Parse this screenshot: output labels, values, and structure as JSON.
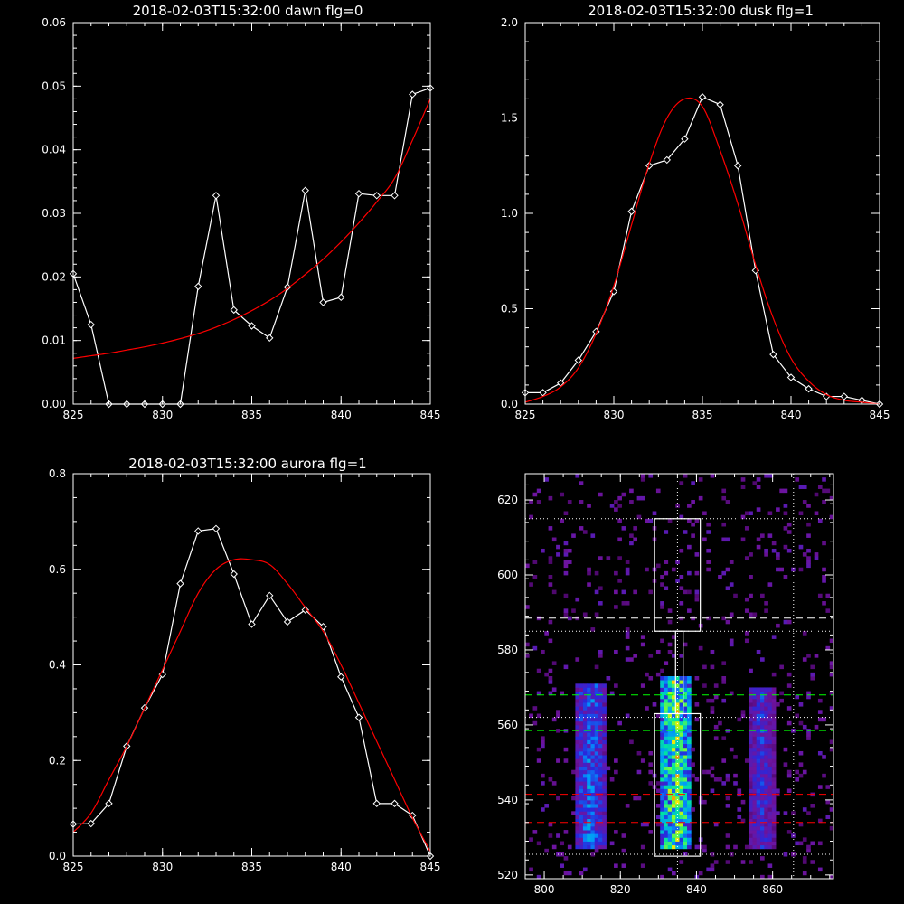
{
  "chart_data": [
    {
      "id": "dawn",
      "type": "line",
      "title": "2018-02-03T15:32:00 dawn flg=0",
      "xlabel": "",
      "ylabel": "",
      "xlim": [
        825,
        845
      ],
      "ylim": [
        0,
        0.06
      ],
      "xticks": [
        "825",
        "830",
        "835",
        "840",
        "845"
      ],
      "yticks": [
        "0.00",
        "0.01",
        "0.02",
        "0.03",
        "0.04",
        "0.05",
        "0.06"
      ],
      "series": [
        {
          "color": "#ffffff",
          "marker": "diamond",
          "x": [
            825,
            826,
            827,
            828,
            829,
            830,
            831,
            832,
            833,
            834,
            835,
            836,
            837,
            838,
            839,
            840,
            841,
            842,
            843,
            844,
            845
          ],
          "y": [
            0.0205,
            0.0125,
            0.0,
            0.0,
            0.0,
            0.0,
            0.0,
            0.0185,
            0.0328,
            0.0148,
            0.0123,
            0.0104,
            0.0184,
            0.0336,
            0.016,
            0.0168,
            0.0331,
            0.0328,
            0.0328,
            0.0487,
            0.0497
          ]
        },
        {
          "color": "#ff0000",
          "marker": "none",
          "x": [
            825,
            826,
            827,
            828,
            829,
            830,
            831,
            832,
            833,
            834,
            835,
            836,
            837,
            838,
            839,
            840,
            841,
            842,
            843,
            844,
            845
          ],
          "y": [
            0.0072,
            0.0076,
            0.008,
            0.0085,
            0.009,
            0.0096,
            0.0103,
            0.0111,
            0.0121,
            0.0133,
            0.0147,
            0.0163,
            0.0182,
            0.0204,
            0.0228,
            0.0255,
            0.0285,
            0.0318,
            0.0355,
            0.0415,
            0.048
          ]
        }
      ]
    },
    {
      "id": "dusk",
      "type": "line",
      "title": "2018-02-03T15:32:00 dusk flg=1",
      "xlabel": "",
      "ylabel": "",
      "xlim": [
        825,
        845
      ],
      "ylim": [
        0,
        2.0
      ],
      "xticks": [
        "825",
        "830",
        "835",
        "840",
        "845"
      ],
      "yticks": [
        "0.0",
        "0.5",
        "1.0",
        "1.5",
        "2.0"
      ],
      "series": [
        {
          "color": "#ffffff",
          "marker": "diamond",
          "x": [
            825,
            826,
            827,
            828,
            829,
            830,
            831,
            832,
            833,
            834,
            835,
            836,
            837,
            838,
            839,
            840,
            841,
            842,
            843,
            844,
            845
          ],
          "y": [
            0.06,
            0.06,
            0.11,
            0.23,
            0.38,
            0.59,
            1.01,
            1.25,
            1.28,
            1.39,
            1.61,
            1.57,
            1.25,
            0.7,
            0.26,
            0.14,
            0.08,
            0.04,
            0.04,
            0.02,
            0.0
          ]
        },
        {
          "color": "#ff0000",
          "marker": "none",
          "x": [
            825,
            826,
            827,
            828,
            829,
            830,
            831,
            832,
            833,
            834,
            835,
            836,
            837,
            838,
            839,
            840,
            841,
            842,
            843,
            844,
            845
          ],
          "y": [
            0.01,
            0.04,
            0.09,
            0.19,
            0.37,
            0.62,
            0.94,
            1.26,
            1.5,
            1.6,
            1.56,
            1.33,
            1.05,
            0.73,
            0.45,
            0.24,
            0.12,
            0.05,
            0.02,
            0.01,
            0.0
          ]
        }
      ]
    },
    {
      "id": "aurora",
      "type": "line",
      "title": "2018-02-03T15:32:00 aurora flg=1",
      "xlabel": "",
      "ylabel": "",
      "xlim": [
        825,
        845
      ],
      "ylim": [
        0,
        0.8
      ],
      "xticks": [
        "825",
        "830",
        "835",
        "840",
        "845"
      ],
      "yticks": [
        "0.0",
        "0.2",
        "0.4",
        "0.6",
        "0.8"
      ],
      "series": [
        {
          "color": "#ffffff",
          "marker": "diamond",
          "x": [
            825,
            826,
            827,
            828,
            829,
            830,
            831,
            832,
            833,
            834,
            835,
            836,
            837,
            838,
            839,
            840,
            841,
            842,
            843,
            844,
            845
          ],
          "y": [
            0.067,
            0.068,
            0.11,
            0.23,
            0.31,
            0.38,
            0.57,
            0.68,
            0.685,
            0.59,
            0.485,
            0.545,
            0.49,
            0.515,
            0.48,
            0.375,
            0.29,
            0.11,
            0.11,
            0.085,
            0.0
          ]
        },
        {
          "color": "#ff0000",
          "marker": "none",
          "x": [
            825,
            826,
            827,
            828,
            829,
            830,
            831,
            832,
            833,
            834,
            835,
            836,
            837,
            838,
            839,
            840,
            841,
            842,
            843,
            844,
            845
          ],
          "y": [
            0.05,
            0.09,
            0.16,
            0.23,
            0.31,
            0.39,
            0.47,
            0.55,
            0.6,
            0.62,
            0.62,
            0.61,
            0.57,
            0.52,
            0.47,
            0.4,
            0.32,
            0.24,
            0.16,
            0.08,
            0.01
          ]
        }
      ]
    },
    {
      "id": "spectrogram",
      "type": "heatmap",
      "title": "",
      "xlabel": "",
      "ylabel": "",
      "xlim": [
        795,
        876
      ],
      "ylim": [
        519,
        627
      ],
      "xticks": [
        "800",
        "820",
        "840",
        "860"
      ],
      "yticks": [
        "520",
        "540",
        "560",
        "580",
        "600",
        "620"
      ],
      "columns": [
        {
          "center_x": 812,
          "width": 6,
          "y_from": 527,
          "y_to": 571,
          "peak": 0.55
        },
        {
          "center_x": 834.5,
          "width": 7,
          "y_from": 527,
          "y_to": 573,
          "peak": 1.0
        },
        {
          "center_x": 857,
          "width": 5,
          "y_from": 527,
          "y_to": 570,
          "peak": 0.4
        }
      ],
      "boxes": [
        {
          "x": [
            829,
            841
          ],
          "y": [
            585,
            615
          ],
          "color": "#ffffff"
        },
        {
          "x": [
            829,
            841
          ],
          "y": [
            525,
            563
          ],
          "color": "#ffffff"
        },
        {
          "x": [
            834.5,
            836.5
          ],
          "y": [
            563,
            585
          ],
          "color": "#ffffff"
        }
      ],
      "hlines": [
        {
          "y": 615,
          "style": "dotted",
          "color": "#ffffff"
        },
        {
          "y": 588.5,
          "style": "dashed",
          "color": "#ffffff"
        },
        {
          "y": 585,
          "style": "dotted",
          "color": "#ffffff"
        },
        {
          "y": 568,
          "style": "dashed",
          "color": "#00ff00"
        },
        {
          "y": 562,
          "style": "dotted",
          "color": "#ffffff"
        },
        {
          "y": 558.5,
          "style": "dashed",
          "color": "#00ff00"
        },
        {
          "y": 541.5,
          "style": "dashed",
          "color": "#ff0000"
        },
        {
          "y": 534,
          "style": "dashed",
          "color": "#ff0000"
        },
        {
          "y": 525.5,
          "style": "dotted",
          "color": "#ffffff"
        }
      ],
      "vlines": [
        {
          "x": 835,
          "style": "dotted",
          "color": "#ffffff"
        },
        {
          "x": 865.5,
          "style": "dotted",
          "color": "#ffffff"
        }
      ]
    }
  ]
}
